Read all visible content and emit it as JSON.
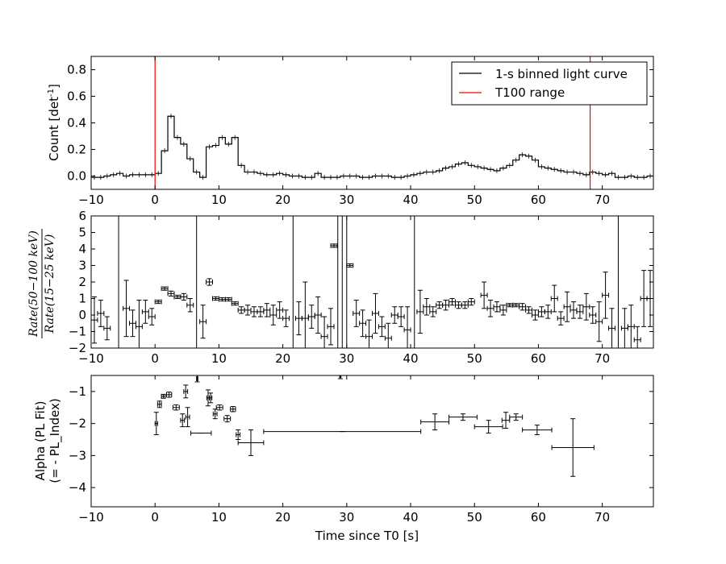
{
  "chart_data": [
    {
      "type": "line",
      "ylabel": "Count [det",
      "ylabel_sup": "-1",
      "ylabel_end": "]",
      "xlim": [
        -10,
        78
      ],
      "ylim": [
        -0.1,
        0.9
      ],
      "xticks": [
        -10,
        0,
        10,
        20,
        30,
        40,
        50,
        60,
        70
      ],
      "xtick_labels": [
        "−10",
        "0",
        "10",
        "20",
        "30",
        "40",
        "50",
        "60",
        "70"
      ],
      "yticks": [
        0.0,
        0.2,
        0.4,
        0.6,
        0.8
      ],
      "ytick_labels": [
        "0.0",
        "0.2",
        "0.4",
        "0.6",
        "0.8"
      ],
      "legend": {
        "placement": "top-right",
        "entries": [
          {
            "label": "1-s binned light curve",
            "color": "#000000"
          },
          {
            "label": "T100 range",
            "color": "#ff0000"
          }
        ]
      },
      "vlines": [
        0.0,
        68.1
      ],
      "bin_start": -10,
      "bin_width": 1,
      "values": [
        -0.01,
        -0.01,
        0.0,
        0.01,
        0.02,
        0.0,
        0.01,
        0.01,
        0.01,
        0.01,
        0.02,
        0.19,
        0.45,
        0.29,
        0.24,
        0.13,
        0.03,
        -0.01,
        0.22,
        0.23,
        0.29,
        0.24,
        0.29,
        0.08,
        0.03,
        0.03,
        0.02,
        0.01,
        0.01,
        0.02,
        0.01,
        0.0,
        0.0,
        -0.01,
        -0.01,
        0.02,
        -0.01,
        -0.01,
        -0.01,
        0.0,
        0.0,
        0.0,
        -0.01,
        -0.01,
        0.0,
        0.0,
        0.0,
        -0.01,
        -0.01,
        0.0,
        0.01,
        0.02,
        0.03,
        0.03,
        0.04,
        0.06,
        0.07,
        0.09,
        0.1,
        0.08,
        0.07,
        0.06,
        0.05,
        0.04,
        0.06,
        0.08,
        0.12,
        0.16,
        0.15,
        0.12,
        0.07,
        0.06,
        0.05,
        0.04,
        0.03,
        0.03,
        0.02,
        0.01,
        0.03,
        0.02,
        0.01,
        0.02,
        -0.01,
        -0.01,
        0.0,
        -0.01,
        -0.01,
        0.0
      ]
    },
    {
      "type": "scatter",
      "ylabel_top": "Rate(50−100 keV)",
      "ylabel_bottom": "Rate(15−25 keV)",
      "xlim": [
        -10,
        78
      ],
      "ylim": [
        -2,
        6
      ],
      "xticks": [
        -10,
        0,
        10,
        20,
        30,
        40,
        50,
        60,
        70
      ],
      "xtick_labels": [
        "−10",
        "0",
        "10",
        "20",
        "30",
        "40",
        "50",
        "60",
        "70"
      ],
      "yticks": [
        -2,
        -1,
        0,
        1,
        2,
        3,
        4,
        5,
        6
      ],
      "ytick_labels": [
        "−2",
        "−1",
        "0",
        "1",
        "2",
        "3",
        "4",
        "5",
        "6"
      ],
      "vlines": [
        -5.7,
        6.5,
        21.6,
        28.6,
        29.3,
        30.0,
        40.6,
        72.5
      ],
      "points": [
        {
          "x": -9.5,
          "y": -0.3,
          "e": 1.4
        },
        {
          "x": -8.5,
          "y": 0.1,
          "e": 0.8
        },
        {
          "x": -7.5,
          "y": -0.8,
          "e": 0.7
        },
        {
          "x": -4.5,
          "y": 0.4,
          "e": 1.7
        },
        {
          "x": -3.5,
          "y": -0.5,
          "e": 0.8
        },
        {
          "x": -2.5,
          "y": -0.7,
          "e": 1.6
        },
        {
          "x": -1.5,
          "y": 0.2,
          "e": 0.7
        },
        {
          "x": -0.5,
          "y": -0.1,
          "e": 0.5
        },
        {
          "x": 0.5,
          "y": 0.8,
          "e": 0.1
        },
        {
          "x": 1.5,
          "y": 1.6,
          "e": 0.1
        },
        {
          "x": 2.5,
          "y": 1.3,
          "e": 0.15
        },
        {
          "x": 3.5,
          "y": 1.1,
          "e": 0.1
        },
        {
          "x": 4.5,
          "y": 1.1,
          "e": 0.2
        },
        {
          "x": 5.5,
          "y": 0.6,
          "e": 0.4
        },
        {
          "x": 7.5,
          "y": -0.4,
          "e": 1.0
        },
        {
          "x": 8.5,
          "y": 2.0,
          "e": 0.2
        },
        {
          "x": 9.5,
          "y": 1.0,
          "e": 0.1
        },
        {
          "x": 10.5,
          "y": 0.95,
          "e": 0.1
        },
        {
          "x": 11.5,
          "y": 0.95,
          "e": 0.1
        },
        {
          "x": 12.5,
          "y": 0.7,
          "e": 0.1
        },
        {
          "x": 13.5,
          "y": 0.3,
          "e": 0.2
        },
        {
          "x": 14.5,
          "y": 0.3,
          "e": 0.3
        },
        {
          "x": 15.5,
          "y": 0.2,
          "e": 0.3
        },
        {
          "x": 16.5,
          "y": 0.2,
          "e": 0.3
        },
        {
          "x": 17.5,
          "y": 0.3,
          "e": 0.4
        },
        {
          "x": 18.5,
          "y": 0.0,
          "e": 0.6
        },
        {
          "x": 19.5,
          "y": 0.3,
          "e": 0.5
        },
        {
          "x": 20.5,
          "y": -0.2,
          "e": 0.5
        },
        {
          "x": 22.5,
          "y": -0.2,
          "e": 1.0
        },
        {
          "x": 23.5,
          "y": -0.2,
          "e": 2.2
        },
        {
          "x": 24.5,
          "y": -0.1,
          "e": 0.7
        },
        {
          "x": 25.5,
          "y": 0.0,
          "e": 1.1
        },
        {
          "x": 26.5,
          "y": -1.3,
          "e": 1.2
        },
        {
          "x": 27.5,
          "y": -0.7,
          "e": 1.1
        },
        {
          "x": 28.0,
          "y": 4.2,
          "e": 0.1
        },
        {
          "x": 30.5,
          "y": 3.0,
          "e": 0.1
        },
        {
          "x": 31.5,
          "y": 0.1,
          "e": 0.8
        },
        {
          "x": 32.5,
          "y": -0.5,
          "e": 0.8
        },
        {
          "x": 33.5,
          "y": -1.3,
          "e": 1.0
        },
        {
          "x": 34.5,
          "y": 0.1,
          "e": 1.2
        },
        {
          "x": 35.5,
          "y": -0.7,
          "e": 0.6
        },
        {
          "x": 36.5,
          "y": -1.4,
          "e": 0.9
        },
        {
          "x": 37.5,
          "y": 0.0,
          "e": 0.5
        },
        {
          "x": 38.5,
          "y": -0.1,
          "e": 0.6
        },
        {
          "x": 39.5,
          "y": -0.9,
          "e": 1.4
        },
        {
          "x": 41.5,
          "y": 0.2,
          "e": 1.3
        },
        {
          "x": 42.5,
          "y": 0.5,
          "e": 0.5
        },
        {
          "x": 43.5,
          "y": 0.2,
          "e": 0.3
        },
        {
          "x": 44.5,
          "y": 0.6,
          "e": 0.2
        },
        {
          "x": 45.5,
          "y": 0.6,
          "e": 0.3
        },
        {
          "x": 46.5,
          "y": 0.8,
          "e": 0.2
        },
        {
          "x": 47.5,
          "y": 0.6,
          "e": 0.2
        },
        {
          "x": 48.5,
          "y": 0.6,
          "e": 0.2
        },
        {
          "x": 49.5,
          "y": 0.8,
          "e": 0.2
        },
        {
          "x": 51.5,
          "y": 1.2,
          "e": 0.8
        },
        {
          "x": 52.5,
          "y": 0.4,
          "e": 0.5
        },
        {
          "x": 53.5,
          "y": 0.5,
          "e": 0.3
        },
        {
          "x": 54.5,
          "y": 0.3,
          "e": 0.3
        },
        {
          "x": 55.5,
          "y": 0.6,
          "e": 0.1
        },
        {
          "x": 56.5,
          "y": 0.6,
          "e": 0.1
        },
        {
          "x": 57.5,
          "y": 0.5,
          "e": 0.2
        },
        {
          "x": 58.5,
          "y": 0.3,
          "e": 0.2
        },
        {
          "x": 59.5,
          "y": 0.0,
          "e": 0.3
        },
        {
          "x": 60.5,
          "y": 0.2,
          "e": 0.3
        },
        {
          "x": 61.5,
          "y": 0.2,
          "e": 0.4
        },
        {
          "x": 62.5,
          "y": 1.0,
          "e": 0.8
        },
        {
          "x": 63.5,
          "y": -0.2,
          "e": 0.4
        },
        {
          "x": 64.5,
          "y": 0.5,
          "e": 0.9
        },
        {
          "x": 65.5,
          "y": 0.3,
          "e": 0.5
        },
        {
          "x": 66.5,
          "y": 0.2,
          "e": 0.4
        },
        {
          "x": 67.5,
          "y": 0.5,
          "e": 0.8
        },
        {
          "x": 68.5,
          "y": 0.0,
          "e": 0.5
        },
        {
          "x": 69.5,
          "y": -0.4,
          "e": 1.2
        },
        {
          "x": 70.5,
          "y": 1.2,
          "e": 1.4
        },
        {
          "x": 71.5,
          "y": -0.8,
          "e": 1.2
        },
        {
          "x": 73.5,
          "y": -0.8,
          "e": 1.2
        },
        {
          "x": 74.5,
          "y": -0.7,
          "e": 1.3
        },
        {
          "x": 75.5,
          "y": -1.5,
          "e": 0.8
        },
        {
          "x": 76.5,
          "y": 1.0,
          "e": 1.7
        },
        {
          "x": 77.5,
          "y": 1.0,
          "e": 1.7
        }
      ],
      "xerr": 0.5
    },
    {
      "type": "scatter",
      "xlabel": "Time since T0 [s]",
      "ylabel_line1": "Alpha (PL Fit)",
      "ylabel_line2": "(= - PL_Index)",
      "xlim": [
        -10,
        78
      ],
      "ylim": [
        -4.6,
        -0.5
      ],
      "xticks": [
        -10,
        0,
        10,
        20,
        30,
        40,
        50,
        60,
        70
      ],
      "xtick_labels": [
        "−10",
        "0",
        "10",
        "20",
        "30",
        "40",
        "50",
        "60",
        "70"
      ],
      "yticks": [
        -4,
        -3,
        -2,
        -1
      ],
      "ytick_labels": [
        "−4",
        "−3",
        "−2",
        "−1"
      ],
      "points": [
        {
          "x": 0.2,
          "xe": 0.2,
          "y": -2.0,
          "ye": 0.35
        },
        {
          "x": 0.7,
          "xe": 0.3,
          "y": -1.4,
          "ye": 0.1
        },
        {
          "x": 1.3,
          "xe": 0.3,
          "y": -1.15,
          "ye": 0.06
        },
        {
          "x": 2.2,
          "xe": 0.4,
          "y": -1.1,
          "ye": 0.08
        },
        {
          "x": 3.3,
          "xe": 0.5,
          "y": -1.5,
          "ye": 0.08
        },
        {
          "x": 4.3,
          "xe": 0.3,
          "y": -1.9,
          "ye": 0.2
        },
        {
          "x": 4.8,
          "xe": 0.3,
          "y": -1.0,
          "ye": 0.2
        },
        {
          "x": 5.1,
          "xe": 0.3,
          "y": -1.8,
          "ye": 0.3
        },
        {
          "x": 7.2,
          "xe": 1.6,
          "y": -2.3,
          "ye": 0.0
        },
        {
          "x": 6.6,
          "xe": 0.1,
          "y": -0.6,
          "ye": 0.1
        },
        {
          "x": 8.3,
          "xe": 0.2,
          "y": -1.2,
          "ye": 0.25
        },
        {
          "x": 8.7,
          "xe": 0.2,
          "y": -1.2,
          "ye": 0.15
        },
        {
          "x": 9.4,
          "xe": 0.3,
          "y": -1.7,
          "ye": 0.15
        },
        {
          "x": 10.1,
          "xe": 0.5,
          "y": -1.5,
          "ye": 0.08
        },
        {
          "x": 11.3,
          "xe": 0.5,
          "y": -1.85,
          "ye": 0.1
        },
        {
          "x": 12.2,
          "xe": 0.4,
          "y": -1.55,
          "ye": 0.08
        },
        {
          "x": 13.0,
          "xe": 0.3,
          "y": -2.35,
          "ye": 0.15
        },
        {
          "x": 15.0,
          "xe": 2.0,
          "y": -2.6,
          "ye": 0.4
        },
        {
          "x": 29.3,
          "xe": 12.3,
          "y": -2.25,
          "ye": 0.0
        },
        {
          "x": 29.0,
          "xe": 0.1,
          "y": -0.5,
          "ye": 0.1
        },
        {
          "x": 43.8,
          "xe": 2.2,
          "y": -1.95,
          "ye": 0.25
        },
        {
          "x": 48.2,
          "xe": 2.2,
          "y": -1.8,
          "ye": 0.1
        },
        {
          "x": 52.2,
          "xe": 2.2,
          "y": -2.1,
          "ye": 0.2
        },
        {
          "x": 54.9,
          "xe": 0.6,
          "y": -1.9,
          "ye": 0.25
        },
        {
          "x": 56.5,
          "xe": 1.0,
          "y": -1.8,
          "ye": 0.1
        },
        {
          "x": 59.8,
          "xe": 2.3,
          "y": -2.2,
          "ye": 0.15
        },
        {
          "x": 65.4,
          "xe": 3.3,
          "y": -2.75,
          "ye": 0.9
        }
      ]
    }
  ]
}
